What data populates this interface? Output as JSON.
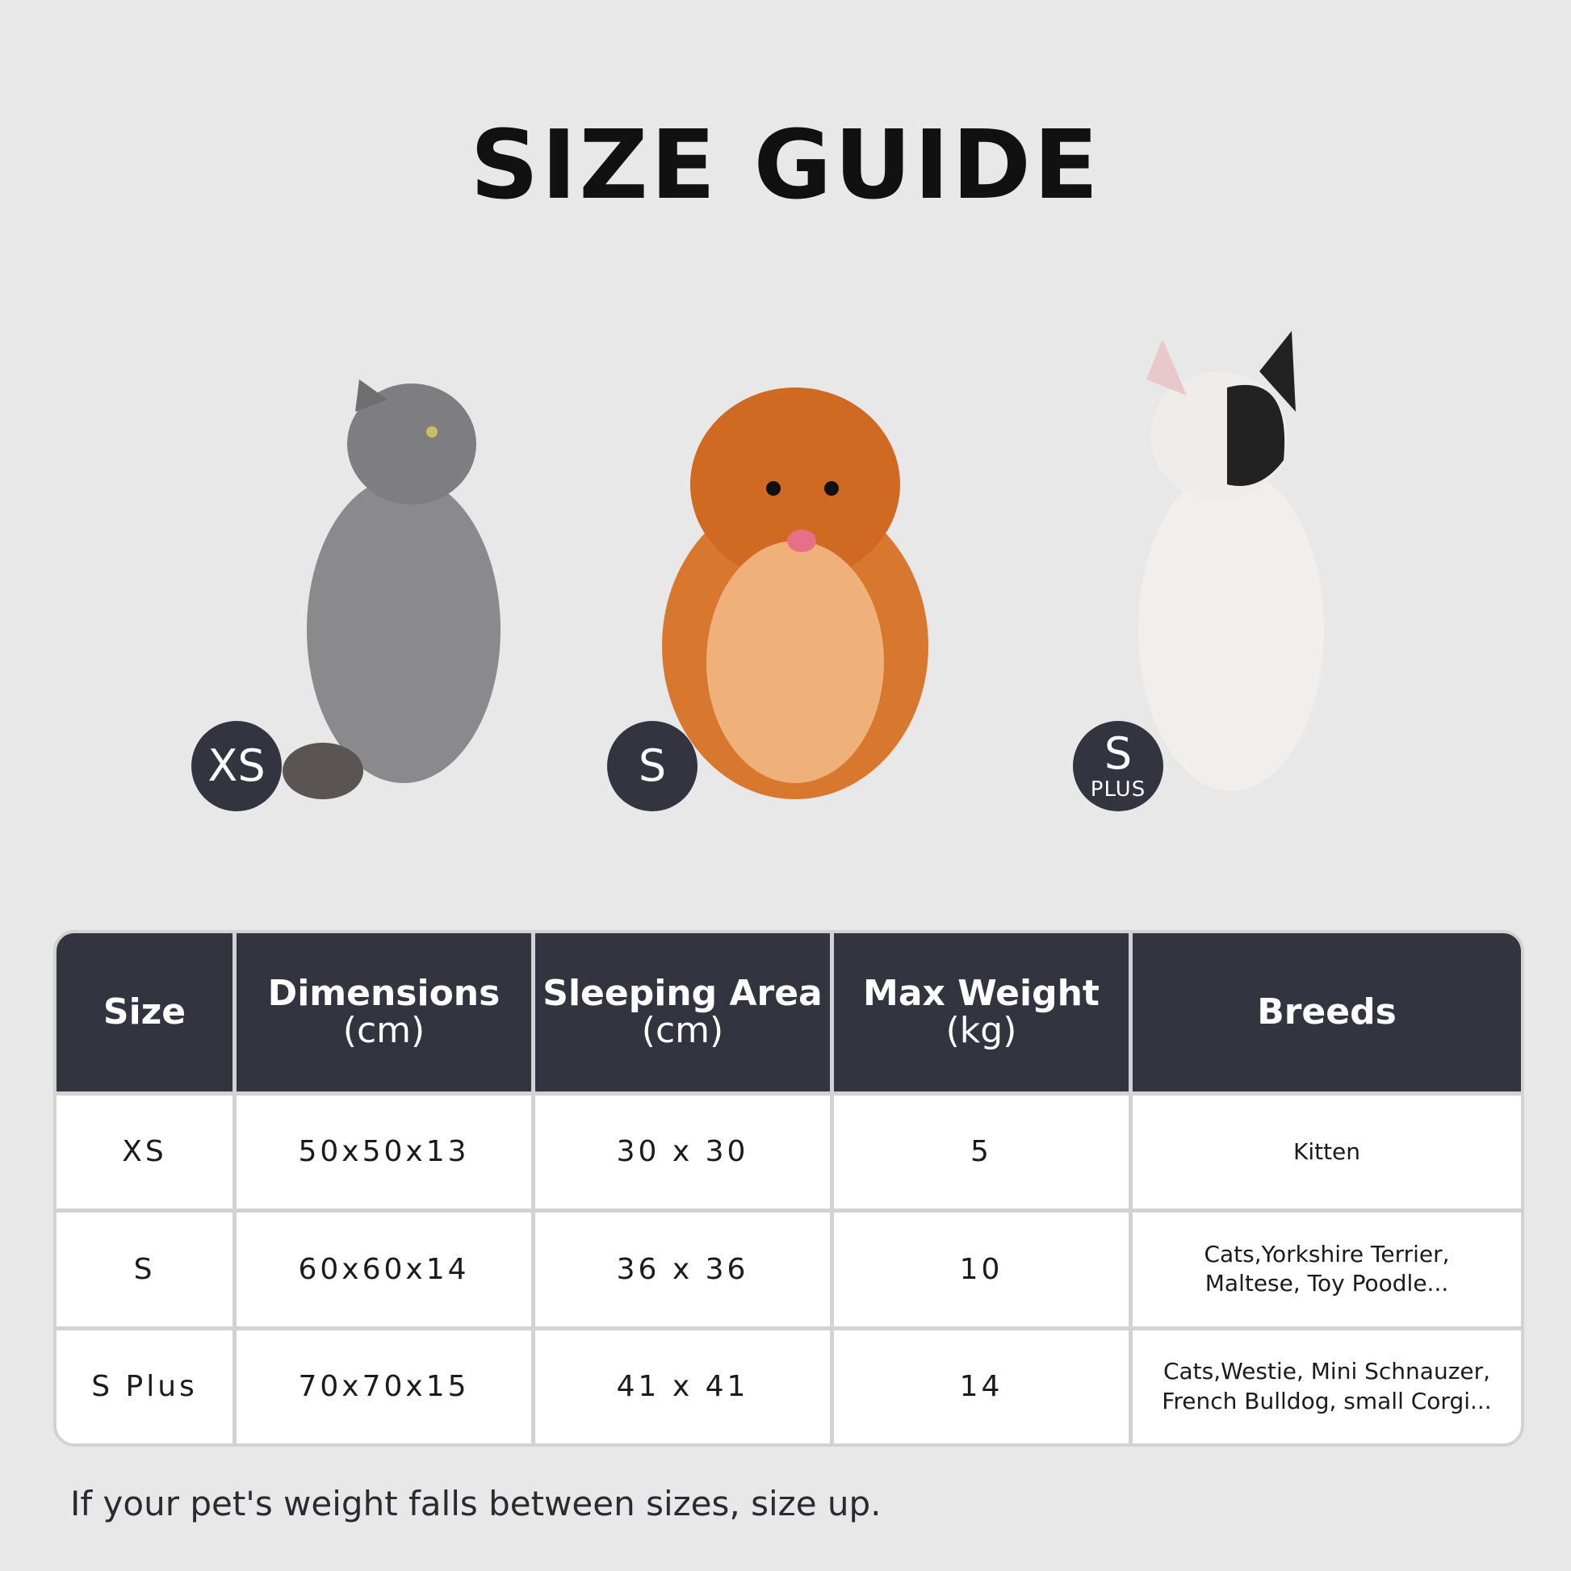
{
  "title": "SIZE GUIDE",
  "badges": [
    {
      "label": "XS",
      "sub": ""
    },
    {
      "label": "S",
      "sub": ""
    },
    {
      "label": "S",
      "sub": "PLUS"
    }
  ],
  "colors": {
    "background": "#e8e8e8",
    "header": "#33343f",
    "badge": "#33343f"
  },
  "table": {
    "headers": [
      {
        "title": "Size",
        "unit": ""
      },
      {
        "title": "Dimensions",
        "unit": "(cm)"
      },
      {
        "title": "Sleeping Area",
        "unit": "(cm)"
      },
      {
        "title": "Max Weight",
        "unit": "(kg)"
      },
      {
        "title": "Breeds",
        "unit": ""
      }
    ],
    "rows": [
      {
        "size": "XS",
        "dimensions": "50x50x13",
        "sleeping_area": "30 x 30",
        "max_weight": "5",
        "breeds": [
          "Kitten",
          ""
        ]
      },
      {
        "size": "S",
        "dimensions": "60x60x14",
        "sleeping_area": "36 x 36",
        "max_weight": "10",
        "breeds": [
          "Cats,Yorkshire Terrier,",
          "Maltese, Toy Poodle..."
        ]
      },
      {
        "size": "S Plus",
        "dimensions": "70x70x15",
        "sleeping_area": "41 x 41",
        "max_weight": "14",
        "breeds": [
          "Cats,Westie, Mini Schnauzer,",
          "French Bulldog, small Corgi..."
        ]
      }
    ]
  },
  "footer": "If your pet's weight falls between sizes, size up."
}
